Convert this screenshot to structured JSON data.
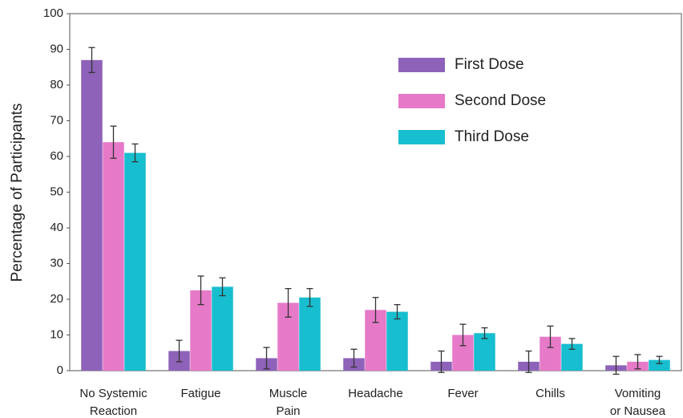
{
  "chart_data": {
    "type": "bar",
    "ylabel": "Percentage of Participants",
    "categories": [
      "No Systemic\nReaction",
      "Fatigue",
      "Muscle\nPain",
      "Headache",
      "Fever",
      "Chills",
      "Vomiting\nor Nausea"
    ],
    "series": [
      {
        "name": "First Dose",
        "color": "#8e62b9",
        "values": [
          87,
          5.5,
          3.5,
          3.5,
          2.5,
          2.5,
          1.5
        ],
        "errors": [
          3.5,
          3,
          3,
          2.5,
          3,
          3,
          2.5
        ]
      },
      {
        "name": "Second Dose",
        "color": "#e67ac8",
        "values": [
          64,
          22.5,
          19,
          17,
          10,
          9.5,
          2.5
        ],
        "errors": [
          4.5,
          4,
          4,
          3.5,
          3,
          3,
          2
        ]
      },
      {
        "name": "Third Dose",
        "color": "#17becf",
        "values": [
          61,
          23.5,
          20.5,
          16.5,
          10.5,
          7.5,
          3
        ],
        "errors": [
          2.5,
          2.5,
          2.5,
          2,
          1.5,
          1.5,
          1
        ]
      }
    ],
    "ylim": [
      0,
      100
    ],
    "yticks": [
      0,
      10,
      20,
      30,
      40,
      50,
      60,
      70,
      80,
      90,
      100
    ],
    "grid": false,
    "legend": "upper right"
  }
}
